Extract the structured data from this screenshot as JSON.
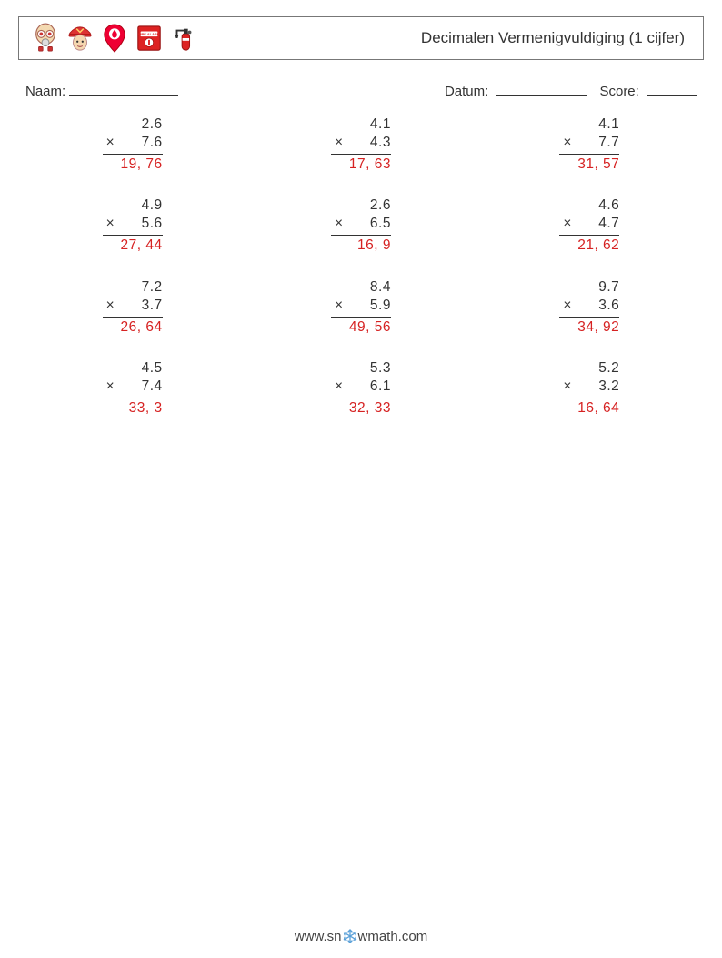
{
  "title": "Decimalen Vermenigvuldiging (1 cijfer)",
  "labels": {
    "name": "Naam:",
    "date": "Datum:",
    "score": "Score:"
  },
  "op_symbol": "×",
  "answer_color": "#d62222",
  "text_color": "#333333",
  "rule_color": "#333333",
  "font_size_pt": 12,
  "problems": [
    [
      {
        "a": "2.6",
        "b": "7.6",
        "ans": "19, 76"
      },
      {
        "a": "4.1",
        "b": "4.3",
        "ans": "17, 63"
      },
      {
        "a": "4.1",
        "b": "7.7",
        "ans": "31, 57"
      }
    ],
    [
      {
        "a": "4.9",
        "b": "5.6",
        "ans": "27, 44"
      },
      {
        "a": "2.6",
        "b": "6.5",
        "ans": "16, 9"
      },
      {
        "a": "4.6",
        "b": "4.7",
        "ans": "21, 62"
      }
    ],
    [
      {
        "a": "7.2",
        "b": "3.7",
        "ans": "26, 64"
      },
      {
        "a": "8.4",
        "b": "5.9",
        "ans": "49, 56"
      },
      {
        "a": "9.7",
        "b": "3.6",
        "ans": "34, 92"
      }
    ],
    [
      {
        "a": "4.5",
        "b": "7.4",
        "ans": "33, 3"
      },
      {
        "a": "5.3",
        "b": "6.1",
        "ans": "32, 33"
      },
      {
        "a": "5.2",
        "b": "3.2",
        "ans": "16, 64"
      }
    ]
  ],
  "footer": "www.snowmath.com",
  "icons": [
    "gas-mask-icon",
    "firefighter-icon",
    "location-pin-icon",
    "fire-alarm-icon",
    "extinguisher-icon"
  ]
}
